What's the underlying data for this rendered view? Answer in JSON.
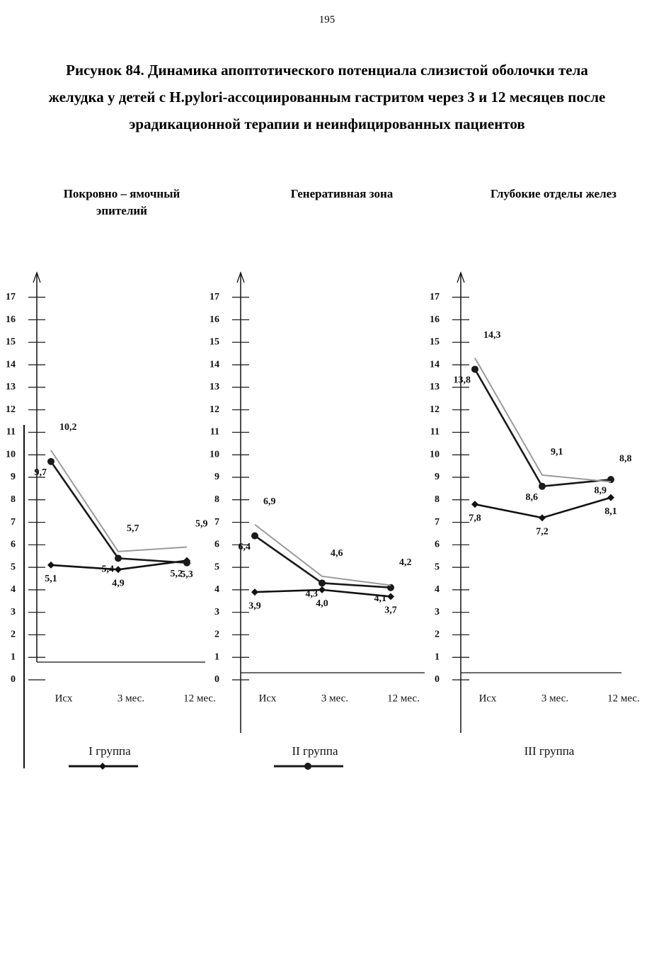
{
  "page_number": "195",
  "figure_title": "Рисунок 84. Динамика апоптотического потенциала слизистой оболочки тела желудка у детей с H.pylori-ассоциированным гастритом через 3 и 12 месяцев после эрадикационной терапии и неинфицированных пациентов",
  "legend": [
    {
      "name": "I группа",
      "color": "#111111",
      "marker": "diamond"
    },
    {
      "name": "II группа",
      "color": "#1a1a1a",
      "marker": "circle"
    },
    {
      "name": "III группа",
      "color": "#9a9a9a",
      "marker": "none"
    }
  ],
  "chart_data": [
    {
      "type": "line",
      "title": "Покровно – ямочный эпителий",
      "categories": [
        "Исх",
        "3 мес.",
        "12 мес."
      ],
      "ylim": [
        0,
        18
      ],
      "yticks": [
        0,
        1,
        2,
        3,
        4,
        5,
        6,
        7,
        8,
        9,
        10,
        11,
        12,
        13,
        14,
        15,
        16,
        17
      ],
      "series": [
        {
          "values": [
            5.1,
            4.9,
            5.3
          ],
          "value_labels": [
            "5,1",
            "4,9",
            "5,3"
          ]
        },
        {
          "values": [
            9.7,
            5.4,
            5.2
          ],
          "value_labels": [
            "9,7",
            "5,4",
            "5,2"
          ]
        },
        {
          "values": [
            10.2,
            5.7,
            5.9
          ],
          "value_labels": [
            "10,2",
            "5,7",
            "5,9"
          ]
        }
      ]
    },
    {
      "type": "line",
      "title": "Генеративная зона",
      "categories": [
        "Исх",
        "3 мес.",
        "12 мес."
      ],
      "ylim": [
        0,
        18
      ],
      "yticks": [
        0,
        1,
        2,
        3,
        4,
        5,
        6,
        7,
        8,
        9,
        10,
        11,
        12,
        13,
        14,
        15,
        16,
        17
      ],
      "series": [
        {
          "values": [
            3.9,
            4.0,
            3.7
          ],
          "value_labels": [
            "3,9",
            "4,0",
            "3,7"
          ]
        },
        {
          "values": [
            6.4,
            4.3,
            4.1
          ],
          "value_labels": [
            "6,4",
            "4,3",
            "4,1"
          ]
        },
        {
          "values": [
            6.9,
            4.6,
            4.2
          ],
          "value_labels": [
            "6,9",
            "4,6",
            "4,2"
          ]
        }
      ]
    },
    {
      "type": "line",
      "title": "Глубокие отделы желез",
      "categories": [
        "Исх",
        "3 мес.",
        "12 мес."
      ],
      "ylim": [
        0,
        18
      ],
      "yticks": [
        0,
        1,
        2,
        3,
        4,
        5,
        6,
        7,
        8,
        9,
        10,
        11,
        12,
        13,
        14,
        15,
        16,
        17
      ],
      "series": [
        {
          "values": [
            7.8,
            7.2,
            8.1
          ],
          "value_labels": [
            "7,8",
            "7,2",
            "8,1"
          ]
        },
        {
          "values": [
            13.8,
            8.6,
            8.9
          ],
          "value_labels": [
            "13,8",
            "8,6",
            "8,9"
          ]
        },
        {
          "values": [
            14.3,
            9.1,
            8.8
          ],
          "value_labels": [
            "14,3",
            "9,1",
            "8,8"
          ]
        }
      ]
    }
  ]
}
